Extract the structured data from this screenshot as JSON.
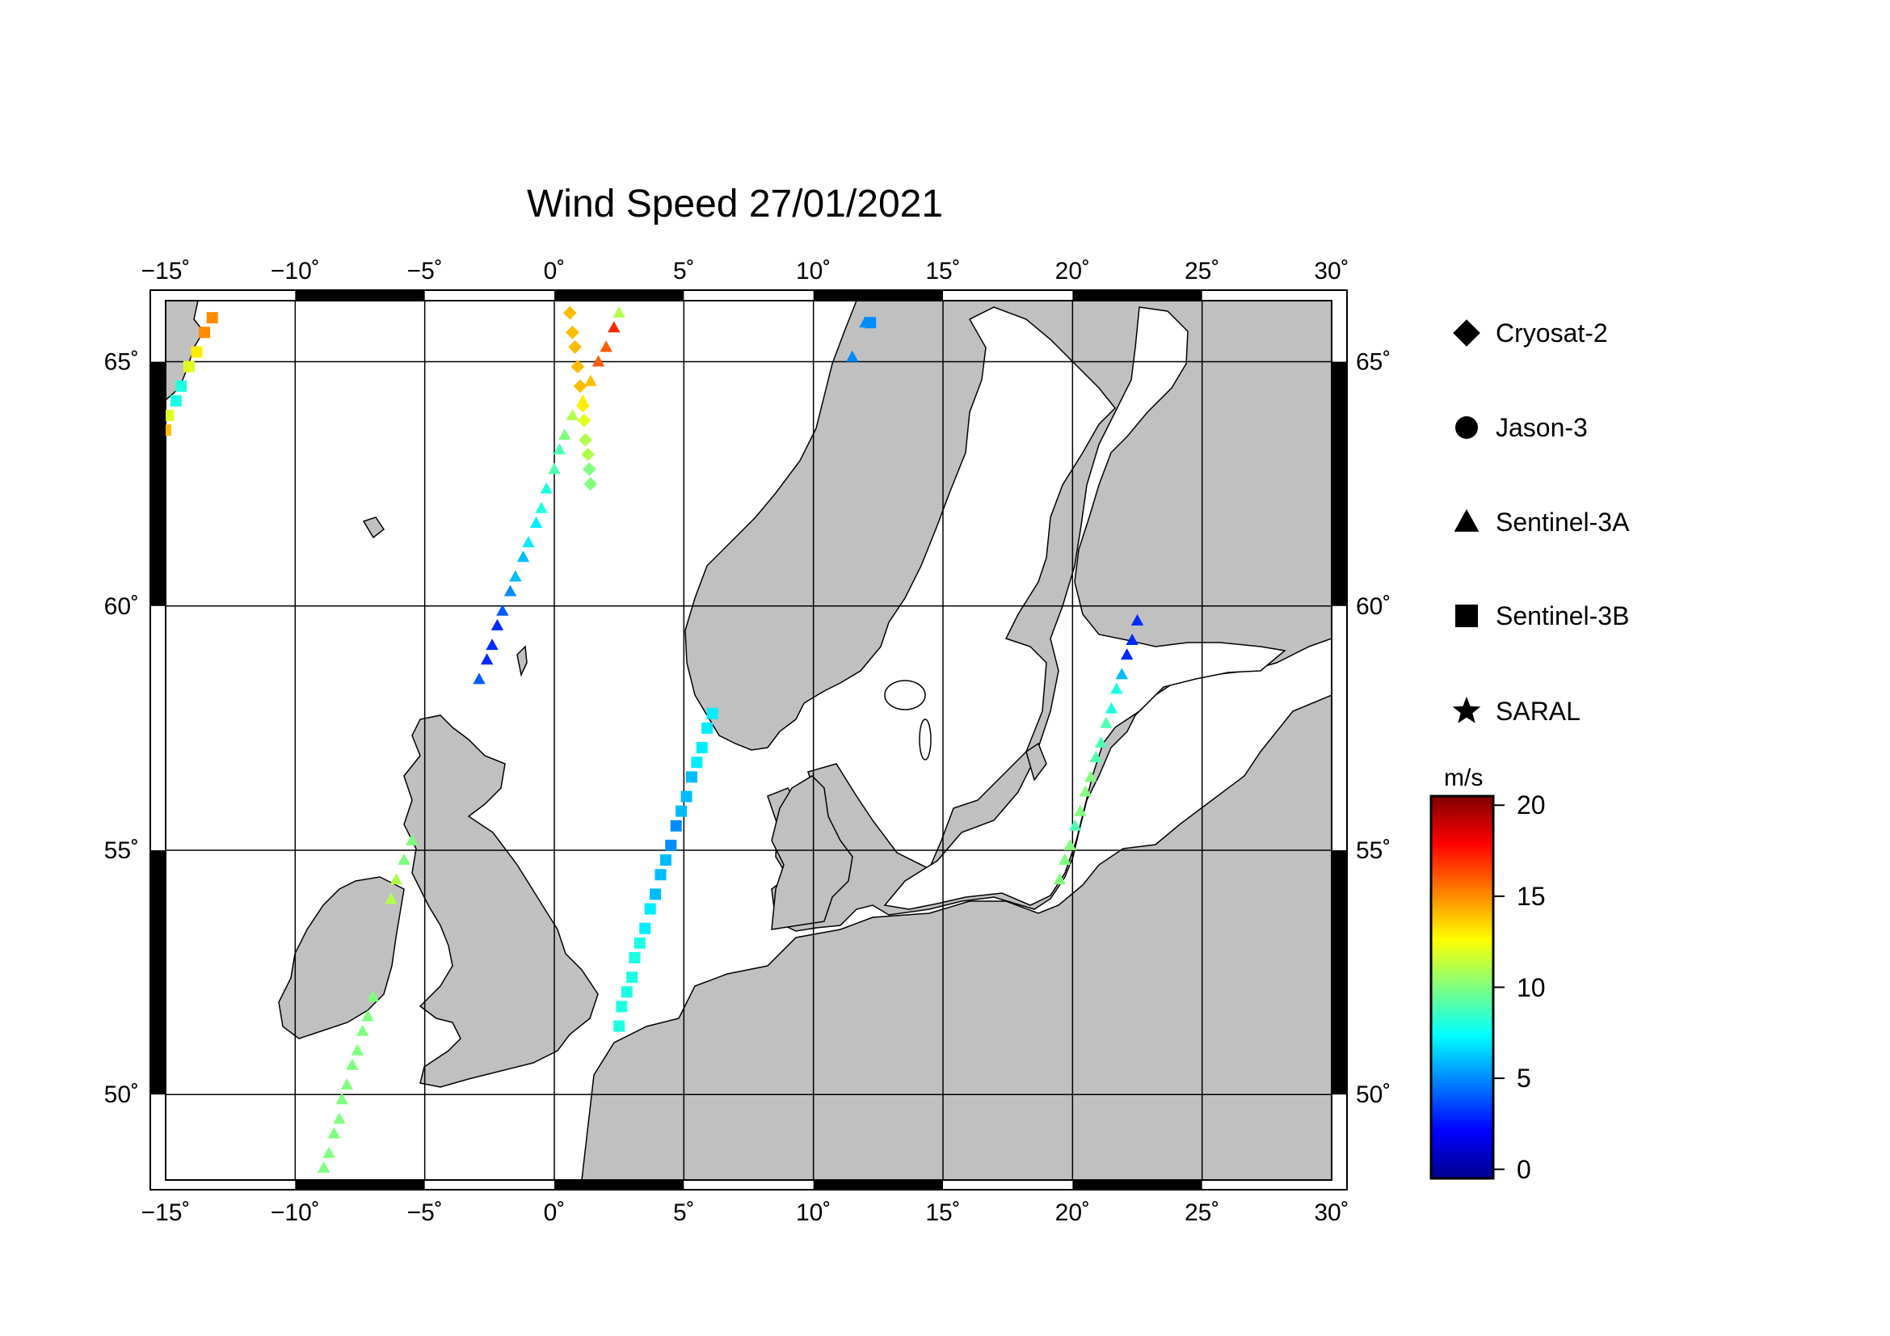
{
  "title": "Wind Speed 27/01/2021",
  "map": {
    "lon_range": [
      -15,
      30
    ],
    "lat_range": [
      48.25,
      66.25
    ],
    "lon_ticks": [
      -15,
      -10,
      -5,
      0,
      5,
      10,
      15,
      20,
      25,
      30
    ],
    "lat_ticks": [
      50,
      55,
      60,
      65
    ],
    "lon_tick_labels": [
      "−15˚",
      "−10˚",
      "−5˚",
      "0˚",
      "5˚",
      "10˚",
      "15˚",
      "20˚",
      "25˚",
      "30˚"
    ],
    "lat_tick_labels": [
      "50˚",
      "55˚",
      "60˚",
      "65˚"
    ],
    "gridlines": true,
    "land_color": "#c0c0c0",
    "sea_color": "#ffffff"
  },
  "legend": {
    "items": [
      {
        "name": "Cryosat-2",
        "symbol": "diamond"
      },
      {
        "name": "Jason-3",
        "symbol": "circle"
      },
      {
        "name": "Sentinel-3A",
        "symbol": "triangle"
      },
      {
        "name": "Sentinel-3B",
        "symbol": "square"
      },
      {
        "name": "SARAL",
        "symbol": "star"
      }
    ]
  },
  "colorbar": {
    "unit": "m/s",
    "min": -0.5,
    "max": 20.5,
    "ticks": [
      0,
      5,
      10,
      15,
      20
    ],
    "tick_labels": [
      "0",
      "5",
      "10",
      "15",
      "20"
    ],
    "colormap": "jet"
  },
  "chart_data": {
    "type": "scatter",
    "x_unit": "degrees longitude",
    "y_unit": "degrees latitude",
    "series": [
      {
        "name": "Cryosat-2",
        "symbol": "diamond",
        "points": [
          {
            "lon": 0.6,
            "lat": 66.0,
            "v": 14
          },
          {
            "lon": 0.7,
            "lat": 65.6,
            "v": 14
          },
          {
            "lon": 0.8,
            "lat": 65.3,
            "v": 14
          },
          {
            "lon": 0.9,
            "lat": 64.9,
            "v": 14
          },
          {
            "lon": 1.0,
            "lat": 64.5,
            "v": 14
          },
          {
            "lon": 1.1,
            "lat": 64.1,
            "v": 13
          },
          {
            "lon": 1.15,
            "lat": 63.8,
            "v": 12
          },
          {
            "lon": 1.2,
            "lat": 63.4,
            "v": 11
          },
          {
            "lon": 1.3,
            "lat": 63.1,
            "v": 11
          },
          {
            "lon": 1.35,
            "lat": 62.8,
            "v": 10
          },
          {
            "lon": 1.4,
            "lat": 62.5,
            "v": 10
          }
        ]
      },
      {
        "name": "Sentinel-3A",
        "symbol": "triangle",
        "points": [
          {
            "lon": 2.5,
            "lat": 66.0,
            "v": 11
          },
          {
            "lon": 2.3,
            "lat": 65.7,
            "v": 17
          },
          {
            "lon": 2.0,
            "lat": 65.3,
            "v": 16
          },
          {
            "lon": 1.7,
            "lat": 65.0,
            "v": 16
          },
          {
            "lon": 1.4,
            "lat": 64.6,
            "v": 14
          },
          {
            "lon": 1.1,
            "lat": 64.2,
            "v": 13
          },
          {
            "lon": 0.7,
            "lat": 63.9,
            "v": 11
          },
          {
            "lon": 0.4,
            "lat": 63.5,
            "v": 10
          },
          {
            "lon": 0.2,
            "lat": 63.2,
            "v": 9
          },
          {
            "lon": 0.0,
            "lat": 62.8,
            "v": 9
          },
          {
            "lon": -0.3,
            "lat": 62.4,
            "v": 8
          },
          {
            "lon": -0.5,
            "lat": 62.0,
            "v": 8
          },
          {
            "lon": -0.7,
            "lat": 61.7,
            "v": 7
          },
          {
            "lon": -1.0,
            "lat": 61.3,
            "v": 7
          },
          {
            "lon": -1.2,
            "lat": 61.0,
            "v": 6
          },
          {
            "lon": -1.5,
            "lat": 60.6,
            "v": 6
          },
          {
            "lon": -1.7,
            "lat": 60.3,
            "v": 5
          },
          {
            "lon": -2.0,
            "lat": 59.9,
            "v": 4
          },
          {
            "lon": -2.2,
            "lat": 59.6,
            "v": 3
          },
          {
            "lon": -2.4,
            "lat": 59.2,
            "v": 3
          },
          {
            "lon": -2.6,
            "lat": 58.9,
            "v": 3
          },
          {
            "lon": -2.9,
            "lat": 58.5,
            "v": 4
          },
          {
            "lon": -5.5,
            "lat": 55.2,
            "v": 10
          },
          {
            "lon": -5.8,
            "lat": 54.8,
            "v": 10
          },
          {
            "lon": -6.1,
            "lat": 54.4,
            "v": 11
          },
          {
            "lon": -6.3,
            "lat": 54.0,
            "v": 11
          },
          {
            "lon": -7.0,
            "lat": 52.0,
            "v": 10
          },
          {
            "lon": -7.2,
            "lat": 51.6,
            "v": 10
          },
          {
            "lon": -7.4,
            "lat": 51.3,
            "v": 10
          },
          {
            "lon": -7.6,
            "lat": 50.9,
            "v": 10
          },
          {
            "lon": -7.8,
            "lat": 50.6,
            "v": 10
          },
          {
            "lon": -8.0,
            "lat": 50.2,
            "v": 10
          },
          {
            "lon": -8.2,
            "lat": 49.9,
            "v": 10
          },
          {
            "lon": -8.3,
            "lat": 49.5,
            "v": 10
          },
          {
            "lon": -8.5,
            "lat": 49.2,
            "v": 10
          },
          {
            "lon": -8.7,
            "lat": 48.8,
            "v": 10
          },
          {
            "lon": -8.9,
            "lat": 48.5,
            "v": 10
          },
          {
            "lon": 22.5,
            "lat": 59.7,
            "v": 3
          },
          {
            "lon": 22.3,
            "lat": 59.3,
            "v": 3
          },
          {
            "lon": 22.1,
            "lat": 59.0,
            "v": 3
          },
          {
            "lon": 21.9,
            "lat": 58.6,
            "v": 6
          },
          {
            "lon": 21.7,
            "lat": 58.3,
            "v": 8
          },
          {
            "lon": 21.5,
            "lat": 57.9,
            "v": 8
          },
          {
            "lon": 21.3,
            "lat": 57.6,
            "v": 9
          },
          {
            "lon": 21.1,
            "lat": 57.2,
            "v": 9
          },
          {
            "lon": 20.9,
            "lat": 56.9,
            "v": 9
          },
          {
            "lon": 20.7,
            "lat": 56.5,
            "v": 10
          },
          {
            "lon": 20.5,
            "lat": 56.2,
            "v": 10
          },
          {
            "lon": 20.3,
            "lat": 55.8,
            "v": 10
          },
          {
            "lon": 20.1,
            "lat": 55.5,
            "v": 9
          },
          {
            "lon": 19.9,
            "lat": 55.1,
            "v": 10
          },
          {
            "lon": 19.7,
            "lat": 54.8,
            "v": 10
          },
          {
            "lon": 19.5,
            "lat": 54.4,
            "v": 10
          },
          {
            "lon": 11.5,
            "lat": 65.1,
            "v": 5
          },
          {
            "lon": 12.0,
            "lat": 65.8,
            "v": 5
          }
        ]
      },
      {
        "name": "Sentinel-3B",
        "symbol": "square",
        "points": [
          {
            "lon": -13.2,
            "lat": 65.9,
            "v": 15
          },
          {
            "lon": -13.5,
            "lat": 65.6,
            "v": 15
          },
          {
            "lon": -13.8,
            "lat": 65.2,
            "v": 13
          },
          {
            "lon": -14.1,
            "lat": 64.9,
            "v": 12
          },
          {
            "lon": -14.4,
            "lat": 64.5,
            "v": 8
          },
          {
            "lon": -14.6,
            "lat": 64.2,
            "v": 8
          },
          {
            "lon": -14.9,
            "lat": 63.9,
            "v": 12
          },
          {
            "lon": -15.0,
            "lat": 63.6,
            "v": 14
          },
          {
            "lon": 12.2,
            "lat": 65.8,
            "v": 5
          },
          {
            "lon": 6.1,
            "lat": 57.8,
            "v": 7
          },
          {
            "lon": 5.9,
            "lat": 57.5,
            "v": 7
          },
          {
            "lon": 5.7,
            "lat": 57.1,
            "v": 7
          },
          {
            "lon": 5.5,
            "lat": 56.8,
            "v": 7
          },
          {
            "lon": 5.3,
            "lat": 56.5,
            "v": 6
          },
          {
            "lon": 5.1,
            "lat": 56.1,
            "v": 6
          },
          {
            "lon": 4.9,
            "lat": 55.8,
            "v": 6
          },
          {
            "lon": 4.7,
            "lat": 55.5,
            "v": 5
          },
          {
            "lon": 4.5,
            "lat": 55.1,
            "v": 5
          },
          {
            "lon": 4.3,
            "lat": 54.8,
            "v": 6
          },
          {
            "lon": 4.1,
            "lat": 54.5,
            "v": 6
          },
          {
            "lon": 3.9,
            "lat": 54.1,
            "v": 6
          },
          {
            "lon": 3.7,
            "lat": 53.8,
            "v": 7
          },
          {
            "lon": 3.5,
            "lat": 53.4,
            "v": 7
          },
          {
            "lon": 3.3,
            "lat": 53.1,
            "v": 8
          },
          {
            "lon": 3.1,
            "lat": 52.8,
            "v": 8
          },
          {
            "lon": 3.0,
            "lat": 52.4,
            "v": 8
          },
          {
            "lon": 2.8,
            "lat": 52.1,
            "v": 8
          },
          {
            "lon": 2.6,
            "lat": 51.8,
            "v": 8
          },
          {
            "lon": 2.5,
            "lat": 51.4,
            "v": 8
          }
        ]
      }
    ]
  }
}
